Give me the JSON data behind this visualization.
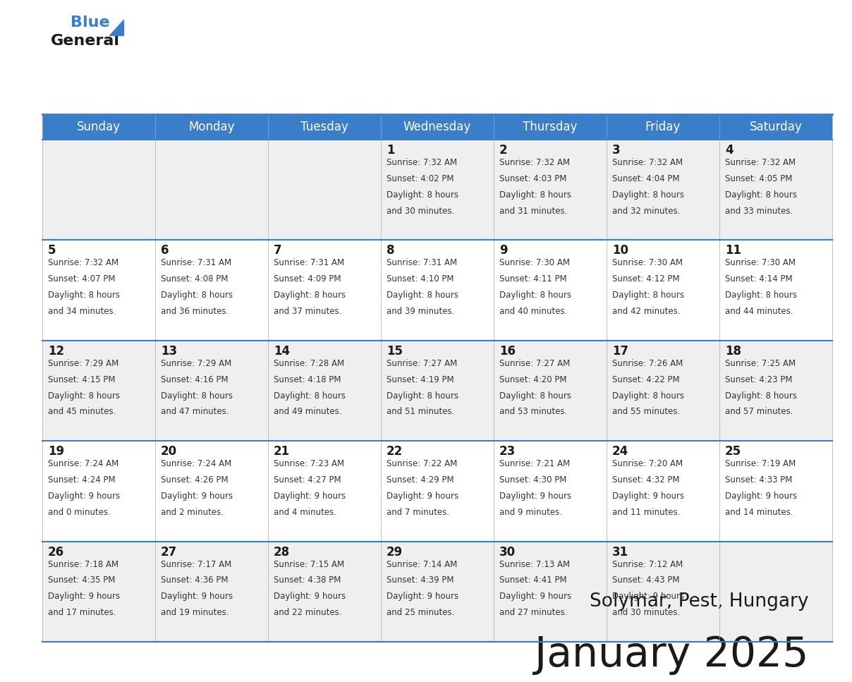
{
  "title": "January 2025",
  "subtitle": "Solymar, Pest, Hungary",
  "header_color": "#3A7DC9",
  "header_text_color": "#FFFFFF",
  "row_bg_colors": [
    "#EFEFEF",
    "#FFFFFF",
    "#EFEFEF",
    "#FFFFFF",
    "#EFEFEF"
  ],
  "day_names": [
    "Sunday",
    "Monday",
    "Tuesday",
    "Wednesday",
    "Thursday",
    "Friday",
    "Saturday"
  ],
  "title_color": "#1a1a1a",
  "subtitle_color": "#1a1a1a",
  "day_number_color": "#1a1a1a",
  "cell_text_color": "#333333",
  "logo_general_color": "#1a1a1a",
  "logo_blue_color": "#3A7DC9",
  "grid_line_color": "#3A7DC9",
  "calendar_data": [
    [
      {
        "day": "",
        "sunrise": "",
        "sunset": "",
        "daylight_h": "",
        "daylight_m": ""
      },
      {
        "day": "",
        "sunrise": "",
        "sunset": "",
        "daylight_h": "",
        "daylight_m": ""
      },
      {
        "day": "",
        "sunrise": "",
        "sunset": "",
        "daylight_h": "",
        "daylight_m": ""
      },
      {
        "day": "1",
        "sunrise": "7:32 AM",
        "sunset": "4:02 PM",
        "daylight_h": "8 hours",
        "daylight_m": "and 30 minutes."
      },
      {
        "day": "2",
        "sunrise": "7:32 AM",
        "sunset": "4:03 PM",
        "daylight_h": "8 hours",
        "daylight_m": "and 31 minutes."
      },
      {
        "day": "3",
        "sunrise": "7:32 AM",
        "sunset": "4:04 PM",
        "daylight_h": "8 hours",
        "daylight_m": "and 32 minutes."
      },
      {
        "day": "4",
        "sunrise": "7:32 AM",
        "sunset": "4:05 PM",
        "daylight_h": "8 hours",
        "daylight_m": "and 33 minutes."
      }
    ],
    [
      {
        "day": "5",
        "sunrise": "7:32 AM",
        "sunset": "4:07 PM",
        "daylight_h": "8 hours",
        "daylight_m": "and 34 minutes."
      },
      {
        "day": "6",
        "sunrise": "7:31 AM",
        "sunset": "4:08 PM",
        "daylight_h": "8 hours",
        "daylight_m": "and 36 minutes."
      },
      {
        "day": "7",
        "sunrise": "7:31 AM",
        "sunset": "4:09 PM",
        "daylight_h": "8 hours",
        "daylight_m": "and 37 minutes."
      },
      {
        "day": "8",
        "sunrise": "7:31 AM",
        "sunset": "4:10 PM",
        "daylight_h": "8 hours",
        "daylight_m": "and 39 minutes."
      },
      {
        "day": "9",
        "sunrise": "7:30 AM",
        "sunset": "4:11 PM",
        "daylight_h": "8 hours",
        "daylight_m": "and 40 minutes."
      },
      {
        "day": "10",
        "sunrise": "7:30 AM",
        "sunset": "4:12 PM",
        "daylight_h": "8 hours",
        "daylight_m": "and 42 minutes."
      },
      {
        "day": "11",
        "sunrise": "7:30 AM",
        "sunset": "4:14 PM",
        "daylight_h": "8 hours",
        "daylight_m": "and 44 minutes."
      }
    ],
    [
      {
        "day": "12",
        "sunrise": "7:29 AM",
        "sunset": "4:15 PM",
        "daylight_h": "8 hours",
        "daylight_m": "and 45 minutes."
      },
      {
        "day": "13",
        "sunrise": "7:29 AM",
        "sunset": "4:16 PM",
        "daylight_h": "8 hours",
        "daylight_m": "and 47 minutes."
      },
      {
        "day": "14",
        "sunrise": "7:28 AM",
        "sunset": "4:18 PM",
        "daylight_h": "8 hours",
        "daylight_m": "and 49 minutes."
      },
      {
        "day": "15",
        "sunrise": "7:27 AM",
        "sunset": "4:19 PM",
        "daylight_h": "8 hours",
        "daylight_m": "and 51 minutes."
      },
      {
        "day": "16",
        "sunrise": "7:27 AM",
        "sunset": "4:20 PM",
        "daylight_h": "8 hours",
        "daylight_m": "and 53 minutes."
      },
      {
        "day": "17",
        "sunrise": "7:26 AM",
        "sunset": "4:22 PM",
        "daylight_h": "8 hours",
        "daylight_m": "and 55 minutes."
      },
      {
        "day": "18",
        "sunrise": "7:25 AM",
        "sunset": "4:23 PM",
        "daylight_h": "8 hours",
        "daylight_m": "and 57 minutes."
      }
    ],
    [
      {
        "day": "19",
        "sunrise": "7:24 AM",
        "sunset": "4:24 PM",
        "daylight_h": "9 hours",
        "daylight_m": "and 0 minutes."
      },
      {
        "day": "20",
        "sunrise": "7:24 AM",
        "sunset": "4:26 PM",
        "daylight_h": "9 hours",
        "daylight_m": "and 2 minutes."
      },
      {
        "day": "21",
        "sunrise": "7:23 AM",
        "sunset": "4:27 PM",
        "daylight_h": "9 hours",
        "daylight_m": "and 4 minutes."
      },
      {
        "day": "22",
        "sunrise": "7:22 AM",
        "sunset": "4:29 PM",
        "daylight_h": "9 hours",
        "daylight_m": "and 7 minutes."
      },
      {
        "day": "23",
        "sunrise": "7:21 AM",
        "sunset": "4:30 PM",
        "daylight_h": "9 hours",
        "daylight_m": "and 9 minutes."
      },
      {
        "day": "24",
        "sunrise": "7:20 AM",
        "sunset": "4:32 PM",
        "daylight_h": "9 hours",
        "daylight_m": "and 11 minutes."
      },
      {
        "day": "25",
        "sunrise": "7:19 AM",
        "sunset": "4:33 PM",
        "daylight_h": "9 hours",
        "daylight_m": "and 14 minutes."
      }
    ],
    [
      {
        "day": "26",
        "sunrise": "7:18 AM",
        "sunset": "4:35 PM",
        "daylight_h": "9 hours",
        "daylight_m": "and 17 minutes."
      },
      {
        "day": "27",
        "sunrise": "7:17 AM",
        "sunset": "4:36 PM",
        "daylight_h": "9 hours",
        "daylight_m": "and 19 minutes."
      },
      {
        "day": "28",
        "sunrise": "7:15 AM",
        "sunset": "4:38 PM",
        "daylight_h": "9 hours",
        "daylight_m": "and 22 minutes."
      },
      {
        "day": "29",
        "sunrise": "7:14 AM",
        "sunset": "4:39 PM",
        "daylight_h": "9 hours",
        "daylight_m": "and 25 minutes."
      },
      {
        "day": "30",
        "sunrise": "7:13 AM",
        "sunset": "4:41 PM",
        "daylight_h": "9 hours",
        "daylight_m": "and 27 minutes."
      },
      {
        "day": "31",
        "sunrise": "7:12 AM",
        "sunset": "4:43 PM",
        "daylight_h": "9 hours",
        "daylight_m": "and 30 minutes."
      },
      {
        "day": "",
        "sunrise": "",
        "sunset": "",
        "daylight_h": "",
        "daylight_m": ""
      }
    ]
  ]
}
